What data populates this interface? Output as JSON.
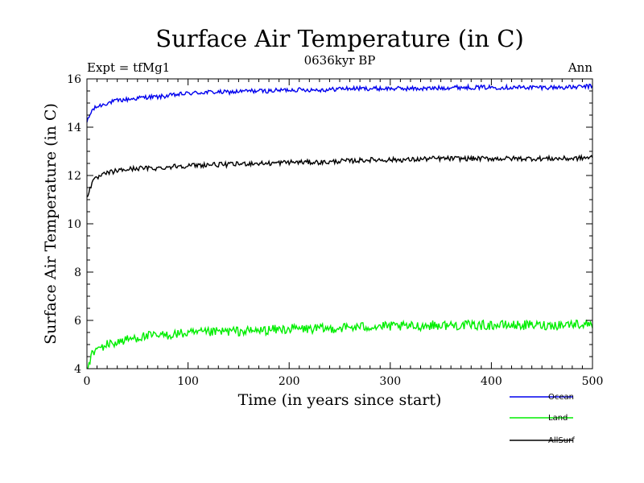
{
  "header": {
    "experiment": "Expt = tfMg1",
    "period": "0636kyr BP",
    "season": "Ann"
  },
  "chart_data": {
    "type": "line",
    "title": "Surface Air Temperature (in C)",
    "xlabel": "Time (in years since start)",
    "ylabel": "Surface Air Temperature (in C)",
    "xlim": [
      0,
      500
    ],
    "ylim": [
      4,
      16
    ],
    "xticks": [
      "0",
      "100",
      "200",
      "300",
      "400",
      "500"
    ],
    "yticks": [
      "4",
      "6",
      "8",
      "10",
      "12",
      "14",
      "16"
    ],
    "grid": false,
    "legend_position": "bottom-right",
    "series": [
      {
        "name": "Ocean",
        "color": "#0000ee",
        "x": [
          0,
          5,
          10,
          20,
          30,
          40,
          50,
          60,
          70,
          80,
          90,
          100,
          120,
          140,
          160,
          180,
          200,
          220,
          240,
          250,
          260,
          280,
          300,
          320,
          340,
          360,
          380,
          400,
          420,
          440,
          460,
          480,
          500
        ],
        "y": [
          14.2,
          14.7,
          14.85,
          15.0,
          15.1,
          15.15,
          15.2,
          15.25,
          15.25,
          15.3,
          15.35,
          15.4,
          15.45,
          15.45,
          15.5,
          15.5,
          15.55,
          15.55,
          15.55,
          15.6,
          15.6,
          15.6,
          15.6,
          15.6,
          15.6,
          15.65,
          15.65,
          15.65,
          15.65,
          15.65,
          15.65,
          15.65,
          15.7
        ]
      },
      {
        "name": "Land",
        "color": "#00ee00",
        "x": [
          0,
          5,
          10,
          20,
          30,
          40,
          50,
          60,
          70,
          80,
          90,
          100,
          120,
          140,
          160,
          180,
          200,
          220,
          240,
          250,
          260,
          280,
          300,
          320,
          340,
          360,
          380,
          400,
          420,
          440,
          460,
          480,
          500
        ],
        "y": [
          4.0,
          4.6,
          4.8,
          5.0,
          5.1,
          5.2,
          5.3,
          5.35,
          5.35,
          5.4,
          5.45,
          5.45,
          5.5,
          5.55,
          5.55,
          5.6,
          5.65,
          5.65,
          5.65,
          5.7,
          5.7,
          5.75,
          5.75,
          5.75,
          5.8,
          5.8,
          5.8,
          5.8,
          5.8,
          5.8,
          5.8,
          5.85,
          5.85
        ]
      },
      {
        "name": "AllSurf",
        "color": "#000000",
        "x": [
          0,
          5,
          10,
          20,
          30,
          40,
          50,
          60,
          70,
          80,
          90,
          100,
          120,
          140,
          160,
          180,
          200,
          220,
          240,
          250,
          260,
          280,
          300,
          320,
          340,
          360,
          380,
          400,
          420,
          440,
          460,
          480,
          500
        ],
        "y": [
          11.1,
          11.7,
          11.9,
          12.1,
          12.2,
          12.25,
          12.3,
          12.3,
          12.3,
          12.35,
          12.4,
          12.4,
          12.45,
          12.45,
          12.5,
          12.5,
          12.55,
          12.55,
          12.55,
          12.6,
          12.6,
          12.65,
          12.65,
          12.65,
          12.7,
          12.7,
          12.7,
          12.7,
          12.7,
          12.7,
          12.7,
          12.7,
          12.75
        ]
      }
    ]
  }
}
